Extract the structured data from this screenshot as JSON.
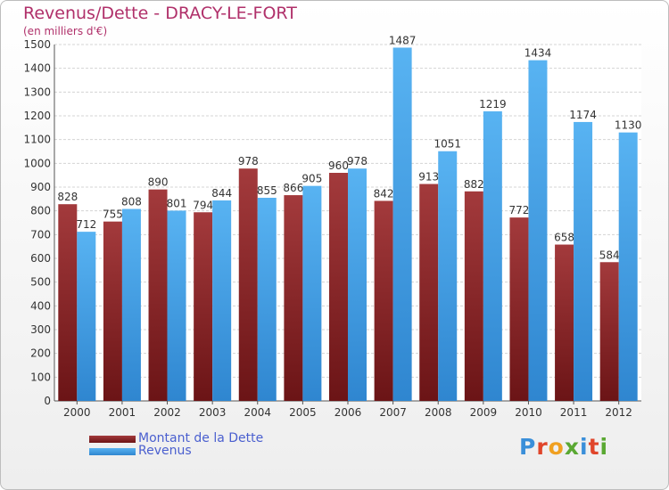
{
  "chart_data": {
    "type": "bar",
    "title": "Revenus/Dette - DRACY-LE-FORT",
    "subtitle": "(en milliers d'€)",
    "categories": [
      "2000",
      "2001",
      "2002",
      "2003",
      "2004",
      "2005",
      "2006",
      "2007",
      "2008",
      "2009",
      "2010",
      "2011",
      "2012"
    ],
    "series": [
      {
        "name": "Montant de la Dette",
        "color": "#6b1416",
        "values": [
          828,
          755,
          890,
          794,
          978,
          866,
          960,
          842,
          913,
          882,
          772,
          658,
          584
        ]
      },
      {
        "name": "Revenus",
        "color": "#3d9be6",
        "values": [
          712,
          808,
          801,
          844,
          855,
          905,
          978,
          1487,
          1051,
          1219,
          1434,
          1174,
          1130
        ]
      }
    ],
    "ylim": [
      0,
      1500
    ],
    "yticks": [
      0,
      100,
      200,
      300,
      400,
      500,
      600,
      700,
      800,
      900,
      1000,
      1100,
      1200,
      1300,
      1400,
      1500
    ],
    "grid": true,
    "legend_position": "bottom-left"
  },
  "logo": {
    "text": "Proxiti",
    "letters": [
      "P",
      "r",
      "o",
      "x",
      "i",
      "t",
      "i"
    ],
    "colors": [
      "#3a8fd9",
      "#e0452a",
      "#f0a020",
      "#5aa832",
      "#3a8fd9",
      "#e0452a",
      "#5aa832"
    ]
  }
}
